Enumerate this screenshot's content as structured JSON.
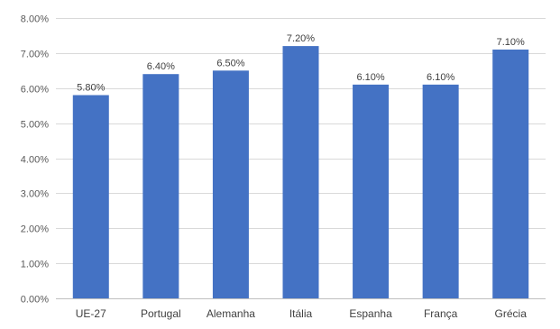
{
  "chart_data": {
    "type": "bar",
    "categories": [
      "UE-27",
      "Portugal",
      "Alemanha",
      "Itália",
      "Espanha",
      "França",
      "Grécia"
    ],
    "values": [
      5.8,
      6.4,
      6.5,
      7.2,
      6.1,
      6.1,
      7.1
    ],
    "data_labels": [
      "5.80%",
      "6.40%",
      "6.50%",
      "7.20%",
      "6.10%",
      "6.10%",
      "7.10%"
    ],
    "y_ticks": [
      0,
      1,
      2,
      3,
      4,
      5,
      6,
      7,
      8
    ],
    "y_tick_labels": [
      "0.00%",
      "1.00%",
      "2.00%",
      "3.00%",
      "4.00%",
      "5.00%",
      "6.00%",
      "7.00%",
      "8.00%"
    ],
    "ylim": [
      0,
      8
    ],
    "grid": true,
    "legend": "none",
    "bar_color": "#4472C4"
  }
}
